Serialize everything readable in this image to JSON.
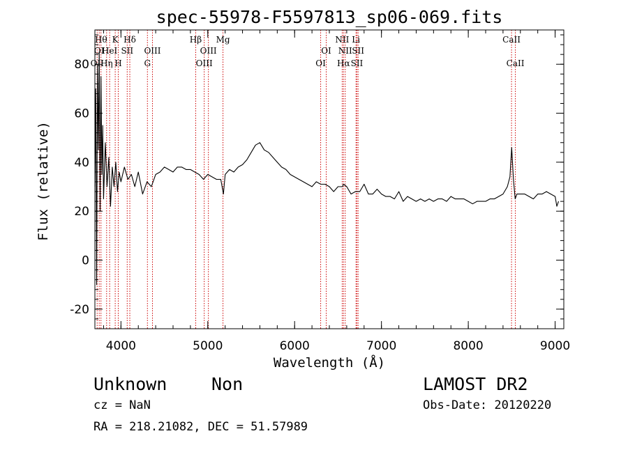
{
  "page": {
    "title": "spec-55978-F5597813_sp06-069.fits",
    "class": "Unknown",
    "subclass": "Non",
    "cz": "cz = NaN",
    "radec": "RA = 218.21082, DEC =  51.57989",
    "survey": "LAMOST DR2",
    "obs_date": "Obs-Date: 20120220"
  },
  "chart_data": {
    "type": "line",
    "title": "spec-55978-F5597813_sp06-069.fits",
    "xlabel": "Wavelength (Å)",
    "ylabel": "Flux (relative)",
    "xlim": [
      3700,
      9100
    ],
    "ylim": [
      -28,
      94
    ],
    "xticks": [
      4000,
      5000,
      6000,
      7000,
      8000,
      9000
    ],
    "yticks": [
      -20,
      0,
      20,
      40,
      60,
      80
    ],
    "x_minor_step": 200,
    "y_minor_step": 4,
    "grid": false,
    "line_color": "#000000",
    "marker_color": "#cc0000",
    "series": [
      {
        "x": [
          3700,
          3710,
          3720,
          3730,
          3740,
          3750,
          3760,
          3770,
          3780,
          3790,
          3800,
          3820,
          3840,
          3860,
          3880,
          3900,
          3920,
          3940,
          3960,
          3980,
          4000,
          4040,
          4080,
          4120,
          4160,
          4200,
          4250,
          4300,
          4350,
          4400,
          4450,
          4500,
          4550,
          4600,
          4650,
          4700,
          4750,
          4800,
          4850,
          4900,
          4950,
          5000,
          5050,
          5100,
          5150,
          5180,
          5200,
          5250,
          5300,
          5350,
          5400,
          5450,
          5500,
          5550,
          5600,
          5650,
          5700,
          5750,
          5800,
          5850,
          5900,
          5950,
          6000,
          6050,
          6100,
          6150,
          6200,
          6250,
          6300,
          6350,
          6400,
          6450,
          6500,
          6550,
          6563,
          6600,
          6650,
          6700,
          6750,
          6800,
          6850,
          6900,
          6950,
          7000,
          7050,
          7100,
          7150,
          7200,
          7250,
          7300,
          7350,
          7400,
          7450,
          7500,
          7550,
          7600,
          7650,
          7700,
          7750,
          7800,
          7850,
          7900,
          7950,
          8000,
          8050,
          8100,
          8150,
          8200,
          8250,
          8300,
          8350,
          8400,
          8450,
          8480,
          8500,
          8520,
          8540,
          8560,
          8600,
          8650,
          8700,
          8750,
          8800,
          8850,
          8900,
          8950,
          9000,
          9020,
          9040
        ],
        "y": [
          30,
          70,
          -10,
          80,
          45,
          85,
          20,
          75,
          35,
          55,
          25,
          48,
          30,
          42,
          22,
          38,
          30,
          40,
          28,
          36,
          32,
          38,
          33,
          35,
          30,
          36,
          27,
          32,
          30,
          35,
          36,
          38,
          37,
          36,
          38,
          38,
          37,
          37,
          36,
          35,
          33,
          35,
          34,
          33,
          33,
          27,
          35,
          37,
          36,
          38,
          39,
          41,
          44,
          47,
          48,
          45,
          44,
          42,
          40,
          38,
          37,
          35,
          34,
          33,
          32,
          31,
          30,
          32,
          31,
          31,
          30,
          28,
          30,
          30,
          31,
          30,
          27,
          28,
          28,
          31,
          27,
          27,
          29,
          27,
          26,
          26,
          25,
          28,
          24,
          26,
          25,
          24,
          25,
          24,
          25,
          24,
          25,
          25,
          24,
          26,
          25,
          25,
          25,
          24,
          23,
          24,
          24,
          24,
          25,
          25,
          26,
          27,
          30,
          34,
          46,
          33,
          25,
          27,
          27,
          27,
          26,
          25,
          27,
          27,
          28,
          27,
          26,
          22,
          24
        ]
      }
    ],
    "lines": [
      {
        "wave": 3726,
        "label": "OII",
        "row": 3
      },
      {
        "wave": 3750,
        "label": "OI",
        "row": 2
      },
      {
        "wave": 3770,
        "label": "Hθ",
        "row": 1
      },
      {
        "wave": 3835,
        "label": "Hη",
        "row": 3
      },
      {
        "wave": 3870,
        "label": "HeI",
        "row": 2
      },
      {
        "wave": 3934,
        "label": "K",
        "row": 1
      },
      {
        "wave": 3969,
        "label": "H",
        "row": 3
      },
      {
        "wave": 4072,
        "label": "SII",
        "row": 2
      },
      {
        "wave": 4102,
        "label": "Hδ",
        "row": 1
      },
      {
        "wave": 4305,
        "label": "G",
        "row": 3
      },
      {
        "wave": 4363,
        "label": "OIII",
        "row": 2
      },
      {
        "wave": 4861,
        "label": "Hβ",
        "row": 1
      },
      {
        "wave": 4959,
        "label": "OIII",
        "row": 3
      },
      {
        "wave": 5007,
        "label": "OIII",
        "row": 2
      },
      {
        "wave": 5175,
        "label": "Mg",
        "row": 1
      },
      {
        "wave": 6300,
        "label": "OI",
        "row": 3
      },
      {
        "wave": 6364,
        "label": "OI",
        "row": 2
      },
      {
        "wave": 6548,
        "label": "NII",
        "row": 1
      },
      {
        "wave": 6563,
        "label": "Hα",
        "row": 3
      },
      {
        "wave": 6583,
        "label": "NII",
        "row": 2
      },
      {
        "wave": 6707,
        "label": "Li",
        "row": 1
      },
      {
        "wave": 6717,
        "label": "SII",
        "row": 3
      },
      {
        "wave": 6731,
        "label": "SII",
        "row": 2
      },
      {
        "wave": 8498,
        "label": "CaII",
        "row": 1
      },
      {
        "wave": 8542,
        "label": "CaII",
        "row": 3
      }
    ]
  }
}
